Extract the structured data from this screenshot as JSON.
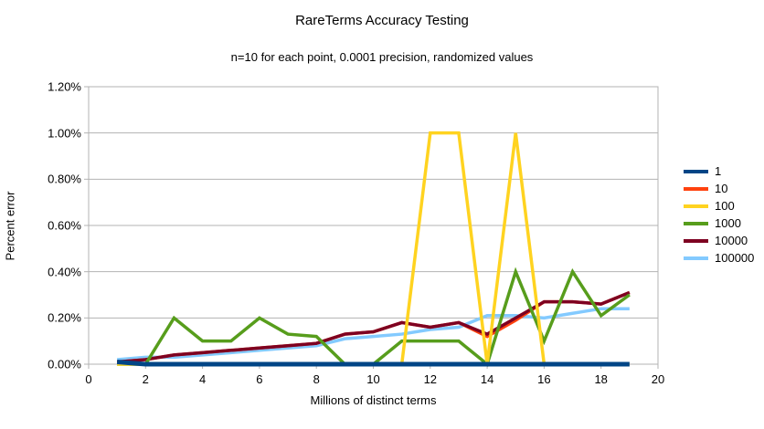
{
  "title": "RareTerms Accuracy Testing",
  "subtitle": "n=10 for each point, 0.0001 precision, randomized values",
  "chart_data": {
    "type": "line",
    "title": "RareTerms Accuracy Testing",
    "subtitle": "n=10 for each point, 0.0001 precision, randomized values",
    "xlabel": "Millions of distinct terms",
    "ylabel": "Percent error",
    "xlim": [
      0,
      20
    ],
    "ylim": [
      0,
      1.2
    ],
    "x_ticks": [
      0,
      2,
      4,
      6,
      8,
      10,
      12,
      14,
      16,
      18,
      20
    ],
    "y_ticks": [
      0.0,
      0.2,
      0.4,
      0.6,
      0.8,
      1.0,
      1.2
    ],
    "y_tick_labels": [
      "0.00%",
      "0.20%",
      "0.40%",
      "0.60%",
      "0.80%",
      "1.00%",
      "1.20%"
    ],
    "grid": "horizontal",
    "legend_position": "right",
    "x": [
      1,
      2,
      3,
      4,
      5,
      6,
      7,
      8,
      9,
      10,
      11,
      12,
      13,
      14,
      15,
      16,
      17,
      18,
      19
    ],
    "series": [
      {
        "name": "1",
        "color": "#004586",
        "width": 5,
        "values": [
          0.01,
          0,
          0,
          0,
          0,
          0,
          0,
          0,
          0,
          0,
          0,
          0,
          0,
          0,
          0,
          0,
          0,
          0,
          0
        ]
      },
      {
        "name": "10",
        "color": "#ff420e",
        "width": 3.5,
        "values": [
          0.01,
          0.02,
          0.04,
          0.05,
          0.06,
          0.07,
          0.08,
          0.09,
          0.13,
          0.14,
          0.18,
          0.16,
          0.18,
          0.12,
          0.19,
          0.27,
          0.27,
          0.26,
          0.31
        ]
      },
      {
        "name": "100",
        "color": "#ffd320",
        "width": 3.5,
        "values": [
          0,
          0,
          0,
          0,
          0,
          0,
          0,
          0,
          0,
          0,
          0,
          1.0,
          1.0,
          0,
          1.0,
          0,
          0,
          0,
          0
        ]
      },
      {
        "name": "1000",
        "color": "#579d1c",
        "width": 3.5,
        "values": [
          0,
          0,
          0.2,
          0.1,
          0.1,
          0.2,
          0.13,
          0.12,
          0,
          0,
          0.1,
          0.1,
          0.1,
          0,
          0.4,
          0.1,
          0.4,
          0.21,
          0.3
        ]
      },
      {
        "name": "10000",
        "color": "#7e0021",
        "width": 3.5,
        "values": [
          0.01,
          0.02,
          0.04,
          0.05,
          0.06,
          0.07,
          0.08,
          0.09,
          0.13,
          0.14,
          0.18,
          0.16,
          0.18,
          0.13,
          0.2,
          0.27,
          0.27,
          0.26,
          0.31
        ]
      },
      {
        "name": "100000",
        "color": "#83caff",
        "width": 3.5,
        "values": [
          0.02,
          0.03,
          0.03,
          0.04,
          0.05,
          0.06,
          0.07,
          0.08,
          0.11,
          0.12,
          0.13,
          0.15,
          0.16,
          0.21,
          0.21,
          0.2,
          0.22,
          0.24,
          0.24
        ]
      }
    ],
    "draw_order": [
      "100000",
      "10",
      "10000",
      "1000",
      "100",
      "1"
    ],
    "axis_color": "#b3b3b3",
    "grid_color": "#b3b3b3"
  }
}
